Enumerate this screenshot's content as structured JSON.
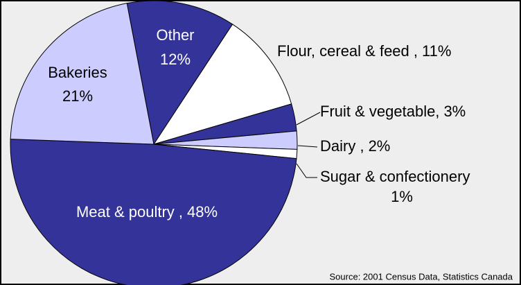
{
  "chart_data": {
    "type": "pie",
    "categories": [
      "Other",
      "Flour, cereal & feed ,",
      "Fruit & vegetable,",
      "Dairy ,",
      "Sugar & confectionery",
      "Meat & poultry ,",
      "Bakeries"
    ],
    "values": [
      12,
      11,
      3,
      2,
      1,
      48,
      21
    ],
    "value_labels": [
      "12%",
      "11%",
      "3%",
      "2%",
      "1%",
      "48%",
      "21%"
    ],
    "colors": [
      "#333399",
      "#ffffff",
      "#333399",
      "#ccccff",
      "#ffffff",
      "#333399",
      "#ccccff"
    ],
    "source": "Source: 2001 Census Data, Statistics Canada"
  }
}
